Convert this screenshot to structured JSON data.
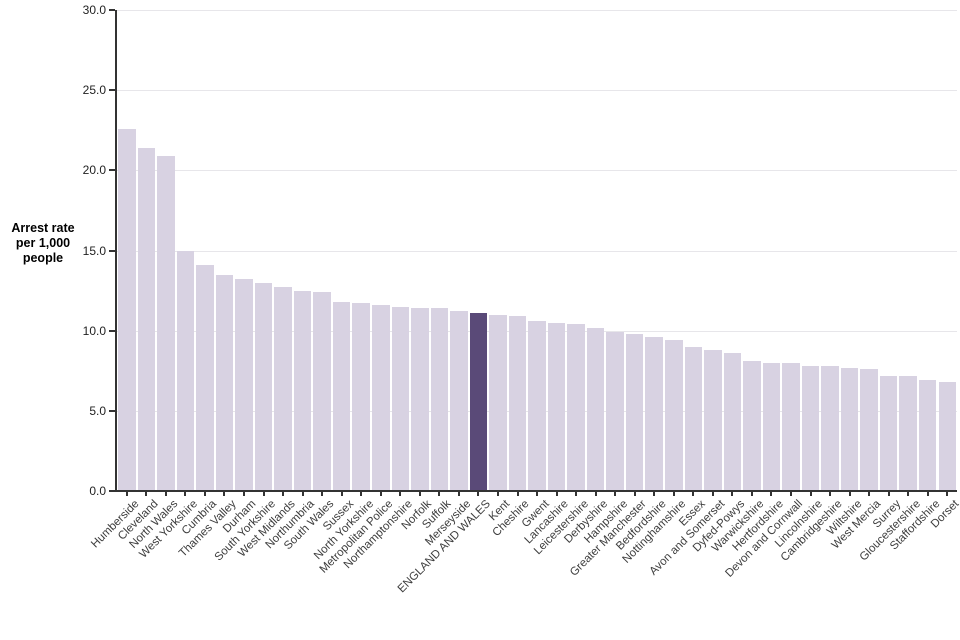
{
  "chart_data": {
    "type": "bar",
    "ylabel": "Arrest rate per 1,000 people",
    "ylabel_lines": [
      "Arrest rate",
      "per 1,000",
      "people"
    ],
    "ylim": [
      0,
      30
    ],
    "ytick_interval": 5,
    "ytick_labels": [
      "0.0",
      "5.0",
      "10.0",
      "15.0",
      "20.0",
      "25.0",
      "30.0"
    ],
    "grid": "horizontal",
    "legend": "none",
    "highlight_category": "ENGLAND AND WALES",
    "highlight_index": 18,
    "categories": [
      "Humberside",
      "Cleveland",
      "North Wales",
      "West Yorkshire",
      "Cumbria",
      "Thames Valley",
      "Durham",
      "South Yorkshire",
      "West Midlands",
      "Northumbria",
      "South Wales",
      "Sussex",
      "North Yorkshire",
      "Metropolitan Police",
      "Northamptonshire",
      "Norfolk",
      "Suffolk",
      "Merseyside",
      "ENGLAND AND WALES",
      "Kent",
      "Cheshire",
      "Gwent",
      "Lancashire",
      "Leicestershire",
      "Derbyshire",
      "Hampshire",
      "Greater Manchester",
      "Bedfordshire",
      "Nottinghamshire",
      "Essex",
      "Avon and Somerset",
      "Dyfed-Powys",
      "Warwickshire",
      "Hertfordshire",
      "Devon and Cornwall",
      "Lincolnshire",
      "Cambridgeshire",
      "Wiltshire",
      "West Mercia",
      "Surrey",
      "Gloucestershire",
      "Staffordshire",
      "Dorset"
    ],
    "values": [
      22.6,
      21.4,
      20.9,
      15.0,
      14.1,
      13.5,
      13.2,
      13.0,
      12.7,
      12.5,
      12.4,
      11.8,
      11.7,
      11.6,
      11.5,
      11.4,
      11.4,
      11.2,
      11.1,
      11.0,
      10.9,
      10.6,
      10.5,
      10.4,
      10.2,
      9.9,
      9.8,
      9.6,
      9.4,
      9.0,
      8.8,
      8.6,
      8.1,
      8.0,
      8.0,
      7.8,
      7.8,
      7.7,
      7.6,
      7.2,
      7.2,
      6.9,
      6.8
    ],
    "colors": {
      "bar": "#d8d2e2",
      "highlight_bar": "#5a4a78",
      "gridline": "#e7e6ea",
      "axis": "#333333",
      "y_tick_label_text": "#1f1f1f",
      "x_tick_label_text": "#3d3d3d",
      "y_axis_title_text": "#000000",
      "background": "#ffffff"
    }
  }
}
